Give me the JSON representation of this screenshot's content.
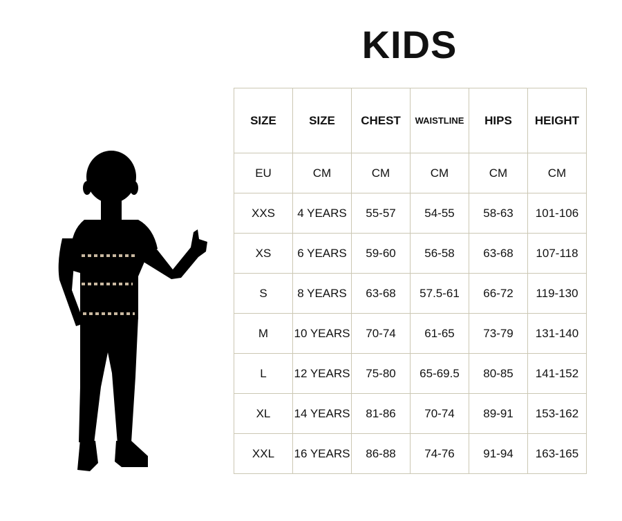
{
  "title": "KIDS",
  "accent_dash_color": "#c9b8a0",
  "figure": {
    "icon": "child-silhouette-thumbs-up"
  },
  "table": {
    "headers": [
      "SIZE",
      "SIZE",
      "CHEST",
      "WAISTLINE",
      "HIPS",
      "HEIGHT"
    ],
    "units": [
      "EU",
      "CM",
      "CM",
      "CM",
      "CM",
      "CM"
    ],
    "rows": [
      [
        "XXS",
        "4 YEARS",
        "55-57",
        "54-55",
        "58-63",
        "101-106"
      ],
      [
        "XS",
        "6 YEARS",
        "59-60",
        "56-58",
        "63-68",
        "107-118"
      ],
      [
        "S",
        "8 YEARS",
        "63-68",
        "57.5-61",
        "66-72",
        "119-130"
      ],
      [
        "M",
        "10 YEARS",
        "70-74",
        "61-65",
        "73-79",
        "131-140"
      ],
      [
        "L",
        "12 YEARS",
        "75-80",
        "65-69.5",
        "80-85",
        "141-152"
      ],
      [
        "XL",
        "14 YEARS",
        "81-86",
        "70-74",
        "89-91",
        "153-162"
      ],
      [
        "XXL",
        "16 YEARS",
        "86-88",
        "74-76",
        "91-94",
        "163-165"
      ]
    ]
  }
}
